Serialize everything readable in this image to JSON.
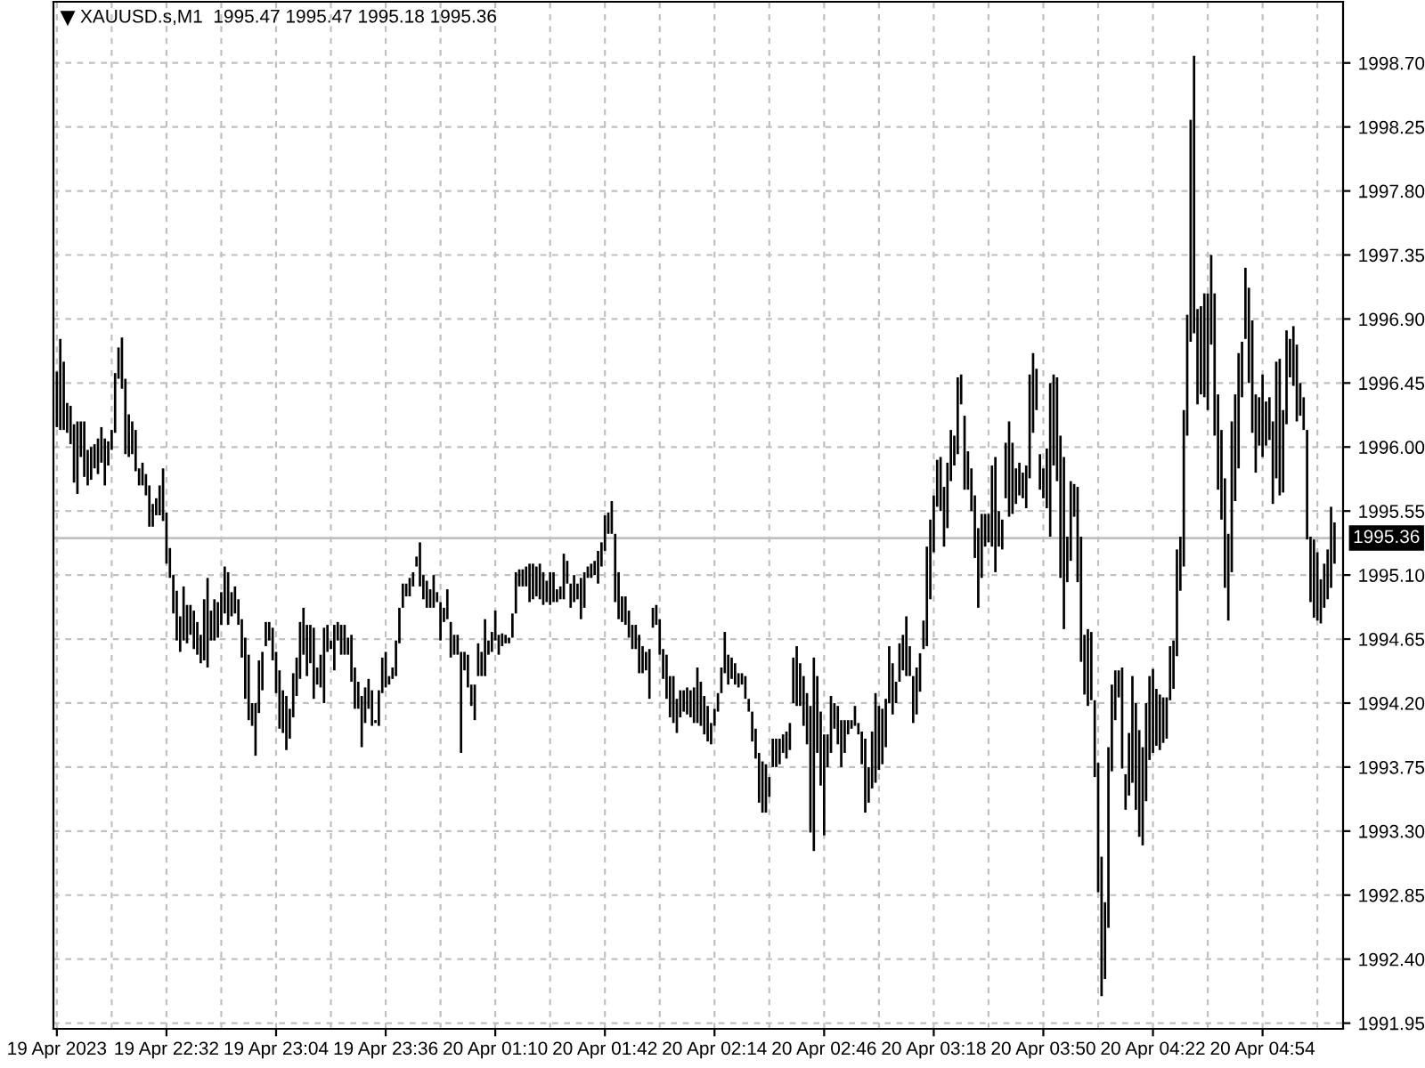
{
  "chart_data": {
    "type": "bar",
    "title": "XAUUSD.s,M1  1995.47 1995.47 1995.18 1995.36",
    "color": "#000000",
    "categories": [
      "19 Apr 2023",
      null,
      null,
      null,
      null,
      null,
      null,
      null,
      null,
      null,
      null,
      null,
      null,
      null,
      null,
      null,
      null,
      null,
      null,
      null,
      null,
      null,
      null,
      null,
      null,
      null,
      null,
      null,
      null,
      null,
      null,
      null,
      "19 Apr 22:32",
      null,
      null,
      null,
      null,
      null,
      null,
      null,
      null,
      null,
      null,
      null,
      null,
      null,
      null,
      null,
      null,
      null,
      null,
      null,
      null,
      null,
      null,
      null,
      null,
      null,
      null,
      null,
      null,
      null,
      null,
      null,
      "19 Apr 23:04",
      null,
      null,
      null,
      null,
      null,
      null,
      null,
      null,
      null,
      null,
      null,
      null,
      null,
      null,
      null,
      null,
      null,
      null,
      null,
      null,
      null,
      null,
      null,
      null,
      null,
      null,
      null,
      null,
      null,
      null,
      null,
      "19 Apr 23:36",
      null,
      null,
      null,
      null,
      null,
      null,
      null,
      null,
      null,
      null,
      null,
      null,
      null,
      null,
      null,
      null,
      null,
      null,
      null,
      null,
      null,
      null,
      null,
      null,
      null,
      null,
      null,
      null,
      null,
      null,
      null,
      "20 Apr 01:10",
      null,
      null,
      null,
      null,
      null,
      null,
      null,
      null,
      null,
      null,
      null,
      null,
      null,
      null,
      null,
      null,
      null,
      null,
      null,
      null,
      null,
      null,
      null,
      null,
      null,
      null,
      null,
      null,
      null,
      null,
      null,
      "20 Apr 01:42",
      null,
      null,
      null,
      null,
      null,
      null,
      null,
      null,
      null,
      null,
      null,
      null,
      null,
      null,
      null,
      null,
      null,
      null,
      null,
      null,
      null,
      null,
      null,
      null,
      null,
      null,
      null,
      null,
      null,
      null,
      null,
      "20 Apr 02:14",
      null,
      null,
      null,
      null,
      null,
      null,
      null,
      null,
      null,
      null,
      null,
      null,
      null,
      null,
      null,
      null,
      null,
      null,
      null,
      null,
      null,
      null,
      null,
      null,
      null,
      null,
      null,
      null,
      null,
      null,
      null,
      "20 Apr 02:46",
      null,
      null,
      null,
      null,
      null,
      null,
      null,
      null,
      null,
      null,
      null,
      null,
      null,
      null,
      null,
      null,
      null,
      null,
      null,
      null,
      null,
      null,
      null,
      null,
      null,
      null,
      null,
      null,
      null,
      null,
      null,
      "20 Apr 03:18",
      null,
      null,
      null,
      null,
      null,
      null,
      null,
      null,
      null,
      null,
      null,
      null,
      null,
      null,
      null,
      null,
      null,
      null,
      null,
      null,
      null,
      null,
      null,
      null,
      null,
      null,
      null,
      null,
      null,
      null,
      null,
      "20 Apr 03:50",
      null,
      null,
      null,
      null,
      null,
      null,
      null,
      null,
      null,
      null,
      null,
      null,
      null,
      null,
      null,
      null,
      null,
      null,
      null,
      null,
      null,
      null,
      null,
      null,
      null,
      null,
      null,
      null,
      null,
      null,
      null,
      "20 Apr 04:22",
      null,
      null,
      null,
      null,
      null,
      null,
      null,
      null,
      null,
      null,
      null,
      null,
      null,
      null,
      null,
      null,
      null,
      null,
      null,
      null,
      null,
      null,
      null,
      null,
      null,
      null,
      null,
      null,
      null,
      null,
      null,
      "20 Apr 04:54",
      null,
      null,
      null,
      null,
      null,
      null,
      null,
      null,
      null,
      null,
      null,
      null,
      null,
      null,
      null,
      null,
      null,
      null,
      null,
      null,
      null
    ],
    "base": [
      1996.14,
      1996.12,
      1996.12,
      1996.1,
      1996.02,
      1995.75,
      1995.67,
      1995.93,
      1995.79,
      1995.73,
      1995.77,
      1995.85,
      1995.81,
      1995.89,
      1995.73,
      1995.87,
      1995.98,
      1996.1,
      1996.48,
      1996.41,
      1995.95,
      1995.93,
      1995.95,
      1995.83,
      1995.73,
      1995.73,
      1995.66,
      1995.44,
      1995.44,
      1995.52,
      1995.52,
      1995.48,
      1995.18,
      1995.08,
      1994.83,
      1994.64,
      1994.56,
      1994.64,
      1994.62,
      1994.68,
      1994.58,
      1994.54,
      1994.48,
      1994.5,
      1994.45,
      1994.64,
      1994.64,
      1994.66,
      1994.75,
      1994.83,
      1994.75,
      1994.81,
      1994.83,
      1994.75,
      1994.52,
      1994.23,
      1994.08,
      1994.04,
      1993.83,
      1994.13,
      1994.29,
      1994.6,
      1994.64,
      1994.5,
      1994.27,
      1994.02,
      1993.99,
      1993.87,
      1993.95,
      1994.1,
      1994.25,
      1994.37,
      1994.54,
      1994.39,
      1994.48,
      1994.23,
      1994.33,
      1994.31,
      1994.2,
      1994.56,
      1994.58,
      1994.43,
      1994.64,
      1994.54,
      1994.54,
      1994.54,
      1994.35,
      1994.16,
      1994.16,
      1993.89,
      1994.06,
      1994.16,
      1994.04,
      1994.06,
      1994.04,
      1994.27,
      1994.31,
      1994.33,
      1994.37,
      1994.39,
      1994.62,
      1994.87,
      1994.95,
      1994.95,
      1995.02,
      1995.16,
      1995.02,
      1994.93,
      1994.87,
      1994.87,
      1994.87,
      1994.91,
      1994.64,
      1994.77,
      1994.79,
      1994.52,
      1994.54,
      1994.54,
      1993.85,
      1994.43,
      1994.31,
      1994.18,
      1994.08,
      1994.39,
      1994.39,
      1994.39,
      1994.54,
      1994.56,
      1994.64,
      1994.54,
      1994.6,
      1994.62,
      1994.62,
      1994.66,
      1994.83,
      1995.02,
      1995.02,
      1995.02,
      1994.91,
      1994.93,
      1994.95,
      1994.93,
      1994.89,
      1994.91,
      1994.89,
      1994.91,
      1994.91,
      1994.93,
      1994.93,
      1995.04,
      1994.87,
      1994.91,
      1994.93,
      1994.79,
      1994.87,
      1995.08,
      1995.08,
      1995.1,
      1995.04,
      1995.16,
      1995.27,
      1995.39,
      1995.39,
      1994.91,
      1994.79,
      1994.77,
      1994.75,
      1994.66,
      1994.58,
      1994.58,
      1994.41,
      1994.41,
      1994.43,
      1994.23,
      1994.73,
      1994.75,
      1994.54,
      1994.37,
      1994.23,
      1994.1,
      1994.06,
      1993.99,
      1994.1,
      1994.14,
      1994.12,
      1994.1,
      1994.06,
      1994.06,
      1994.04,
      1993.98,
      1993.93,
      1993.91,
      1994.04,
      1994.14,
      1994.27,
      1994.41,
      1994.33,
      1994.37,
      1994.33,
      1994.31,
      1994.33,
      1994.23,
      1994.14,
      1993.93,
      1993.81,
      1993.5,
      1993.43,
      1993.43,
      1993.54,
      1993.75,
      1993.75,
      1993.77,
      1993.85,
      1993.81,
      1993.87,
      1994.2,
      1994.18,
      1994.18,
      1994.04,
      1993.91,
      1993.29,
      1993.16,
      1993.85,
      1993.62,
      1993.27,
      1993.75,
      1993.85,
      1994.02,
      1993.91,
      1993.75,
      1993.85,
      1993.98,
      1994.02,
      1994.04,
      1993.98,
      1993.77,
      1993.43,
      1993.5,
      1993.6,
      1993.64,
      1993.73,
      1993.77,
      1993.89,
      1994.2,
      1994.12,
      1994.2,
      1994.35,
      1994.43,
      1994.39,
      1994.39,
      1994.06,
      1994.12,
      1994.28,
      1994.58,
      1994.6,
      1994.93,
      1995.26,
      1995.58,
      1995.55,
      1995.3,
      1995.43,
      1995.76,
      1995.87,
      1995.95,
      1996.3,
      1995.7,
      1995.7,
      1995.55,
      1995.22,
      1994.87,
      1995.08,
      1995.3,
      1995.33,
      1995.3,
      1995.12,
      1995.3,
      1995.28,
      1995.64,
      1995.51,
      1995.53,
      1995.6,
      1995.66,
      1995.64,
      1995.57,
      1995.78,
      1996.1,
      1996.26,
      1995.7,
      1995.64,
      1995.57,
      1995.37,
      1995.87,
      1995.76,
      1995.08,
      1994.72,
      1995.05,
      1995.2,
      1995.51,
      1995.05,
      1994.49,
      1994.26,
      1994.18,
      1994.22,
      1993.68,
      1992.87,
      1992.14,
      1992.26,
      1992.62,
      1993.72,
      1994.08,
      1994.24,
      1993.74,
      1993.45,
      1993.55,
      1993.64,
      1993.45,
      1993.26,
      1993.2,
      1993.51,
      1993.8,
      1993.85,
      1993.9,
      1993.87,
      1993.92,
      1993.95,
      1994.22,
      1994.3,
      1994.53,
      1994.99,
      1995.16,
      1996.08,
      1996.74,
      1996.8,
      1996.3,
      1996.37,
      1996.35,
      1996.26,
      1996.72,
      1996.08,
      1995.7,
      1995.49,
      1995.01,
      1994.78,
      1995.12,
      1995.62,
      1995.85,
      1996.35,
      1996.76,
      1996.45,
      1996.1,
      1995.82,
      1996.01,
      1995.93,
      1996.01,
      1996.05,
      1995.6,
      1995.78,
      1995.66,
      1995.68,
      1996.16,
      1996.49,
      1996.43,
      1996.18,
      1996.22,
      1996.12,
      1995.35,
      1994.91,
      1994.8,
      1994.78,
      1994.76,
      1994.87,
      1994.93,
      1995.01,
      1995.18
    ],
    "values": [
      0.39,
      0.64,
      0.48,
      0.21,
      0.27,
      0.41,
      0.51,
      0.25,
      0.39,
      0.25,
      0.23,
      0.17,
      0.25,
      0.25,
      0.33,
      0.17,
      0.14,
      0.42,
      0.22,
      0.36,
      0.53,
      0.3,
      0.23,
      0.29,
      0.12,
      0.16,
      0.15,
      0.29,
      0.16,
      0.12,
      0.21,
      0.37,
      0.36,
      0.21,
      0.27,
      0.35,
      0.25,
      0.38,
      0.27,
      0.21,
      0.27,
      0.23,
      0.2,
      0.43,
      0.63,
      0.21,
      0.29,
      0.25,
      0.23,
      0.33,
      0.37,
      0.17,
      0.19,
      0.18,
      0.27,
      0.43,
      0.46,
      0.16,
      0.37,
      0.37,
      0.27,
      0.17,
      0.13,
      0.23,
      0.29,
      0.41,
      0.3,
      0.38,
      0.21,
      0.31,
      0.27,
      0.4,
      0.33,
      0.36,
      0.27,
      0.5,
      0.12,
      0.23,
      0.53,
      0.19,
      0.06,
      0.32,
      0.13,
      0.21,
      0.21,
      0.12,
      0.33,
      0.29,
      0.19,
      0.36,
      0.25,
      0.21,
      0.25,
      0.02,
      0.25,
      0.25,
      0.25,
      0.06,
      0.08,
      0.25,
      0.25,
      0.17,
      0.09,
      0.13,
      0.1,
      0.07,
      0.31,
      0.17,
      0.19,
      0.13,
      0.23,
      0.07,
      0.27,
      0.1,
      0.21,
      0.25,
      0.14,
      0.14,
      0.71,
      0.13,
      0.23,
      0.15,
      0.25,
      0.23,
      0.17,
      0.4,
      0.1,
      0.14,
      0.21,
      0.14,
      0.09,
      0.06,
      0.04,
      0.17,
      0.29,
      0.12,
      0.12,
      0.14,
      0.27,
      0.25,
      0.21,
      0.25,
      0.23,
      0.15,
      0.23,
      0.21,
      0.09,
      0.09,
      0.32,
      0.16,
      0.17,
      0.19,
      0.11,
      0.29,
      0.25,
      0.08,
      0.1,
      0.1,
      0.23,
      0.17,
      0.25,
      0.15,
      0.23,
      0.48,
      0.33,
      0.18,
      0.2,
      0.19,
      0.17,
      0.17,
      0.27,
      0.19,
      0.13,
      0.35,
      0.14,
      0.14,
      0.25,
      0.21,
      0.31,
      0.29,
      0.33,
      0.24,
      0.19,
      0.15,
      0.19,
      0.19,
      0.25,
      0.39,
      0.31,
      0.27,
      0.25,
      0.15,
      0.12,
      0.13,
      0.18,
      0.29,
      0.21,
      0.15,
      0.15,
      0.1,
      0.08,
      0.16,
      0.09,
      0.21,
      0.21,
      0.35,
      0.36,
      0.34,
      0.14,
      0.2,
      0.2,
      0.18,
      0.13,
      0.19,
      0.19,
      0.32,
      0.42,
      0.3,
      0.35,
      0.36,
      0.89,
      1.36,
      0.54,
      0.52,
      0.71,
      0.23,
      0.4,
      0.18,
      0.27,
      0.33,
      0.23,
      0.1,
      0.06,
      0.14,
      0.08,
      0.23,
      0.52,
      0.25,
      0.4,
      0.63,
      0.45,
      0.39,
      0.34,
      0.4,
      0.36,
      0.15,
      0.27,
      0.25,
      0.42,
      0.21,
      0.33,
      0.33,
      0.27,
      0.2,
      0.7,
      0.56,
      0.4,
      0.33,
      0.38,
      0.42,
      0.46,
      0.36,
      0.21,
      0.54,
      0.21,
      0.52,
      0.27,
      0.3,
      0.44,
      0.56,
      0.45,
      0.23,
      0.2,
      0.57,
      0.81,
      0.25,
      0.21,
      0.39,
      0.67,
      0.5,
      0.25,
      0.23,
      0.18,
      0.3,
      0.73,
      0.56,
      0.29,
      0.25,
      0.21,
      0.42,
      1.08,
      0.64,
      0.73,
      1.0,
      1.21,
      0.32,
      0.56,
      0.23,
      0.67,
      0.88,
      0.42,
      0.54,
      0.48,
      0.54,
      0.91,
      0.98,
      0.54,
      1.27,
      0.61,
      0.35,
      0.19,
      0.71,
      0.25,
      0.44,
      0.75,
      0.75,
      0.75,
      0.69,
      0.69,
      0.59,
      0.59,
      0.4,
      0.39,
      0.32,
      0.29,
      0.38,
      0.34,
      0.75,
      0.38,
      1.1,
      0.85,
      1.56,
      1.95,
      0.67,
      0.62,
      0.73,
      0.82,
      0.63,
      1.0,
      0.67,
      0.63,
      0.77,
      0.61,
      1.06,
      0.75,
      0.81,
      0.39,
      0.5,
      0.67,
      0.79,
      0.55,
      0.34,
      0.58,
      0.31,
      0.3,
      0.58,
      0.82,
      0.96,
      0.58,
      0.66,
      0.27,
      0.42,
      0.54,
      0.23,
      0.23,
      0.77,
      0.46,
      0.55,
      0.48,
      0.31,
      0.31,
      0.35,
      0.57,
      0.29
    ],
    "ylim": [
      1991.91,
      1999.13
    ],
    "yticks": [
      1991.95,
      {
        "value": 1992.4,
        "label": "1992.40"
      },
      1992.85,
      {
        "value": 1993.3,
        "label": "1993.30"
      },
      1993.75,
      {
        "value": 1994.2,
        "label": "1994.20"
      },
      1994.65,
      {
        "value": 1995.1,
        "label": "1995.10"
      },
      1995.55,
      {
        "value": 1996.0,
        "label": "1996.00"
      },
      1996.45,
      {
        "value": 1996.9,
        "label": "1996.90"
      },
      1997.35,
      {
        "value": 1997.8,
        "label": "1997.80"
      },
      1998.25,
      {
        "value": 1998.7,
        "label": "1998.70"
      }
    ],
    "grid": true,
    "ref_lines": [
      {
        "axis": "y",
        "value": 1995.36,
        "label": "1995.36",
        "color": "#c0c0c0"
      }
    ]
  }
}
